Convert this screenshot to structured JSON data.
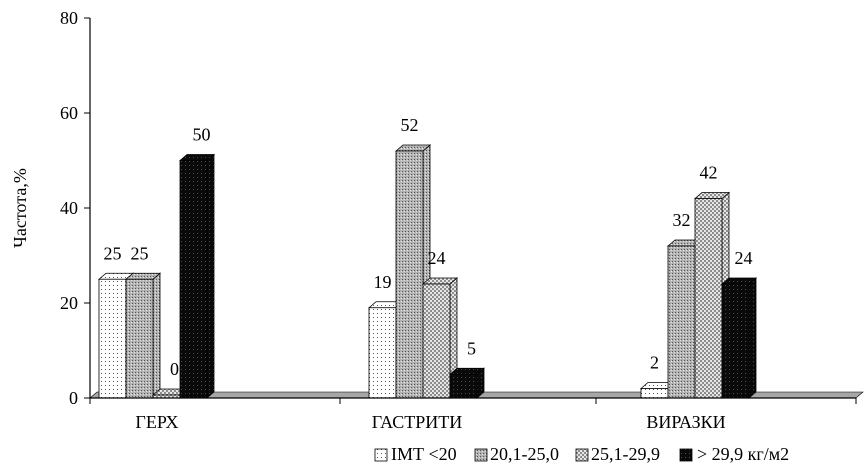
{
  "chart_data": {
    "type": "bar",
    "style": "3d-clustered-column",
    "categories": [
      "ГЕРХ",
      "ГАСТРИТИ",
      "ВИРАЗКИ"
    ],
    "series": [
      {
        "name": "ІМТ <20",
        "values": [
          25,
          19,
          2
        ],
        "pattern": "dots-white"
      },
      {
        "name": "20,1-25,0",
        "values": [
          25,
          52,
          32
        ],
        "pattern": "gray-fine"
      },
      {
        "name": "25,1-29,9",
        "values": [
          0,
          24,
          42
        ],
        "pattern": "checker-light"
      },
      {
        "name": "> 29,9 кг/м2",
        "values": [
          50,
          5,
          24
        ],
        "pattern": "black-dotted"
      }
    ],
    "ylabel": "Частота,%",
    "ylim": [
      0,
      80
    ],
    "yticks": [
      "0",
      "20",
      "40",
      "60",
      "80"
    ],
    "grid": false,
    "legend_position": "bottom-right",
    "colors": {
      "floor": "#a6a6a6",
      "axis": "#000000",
      "bar_outline": "#000000"
    }
  }
}
